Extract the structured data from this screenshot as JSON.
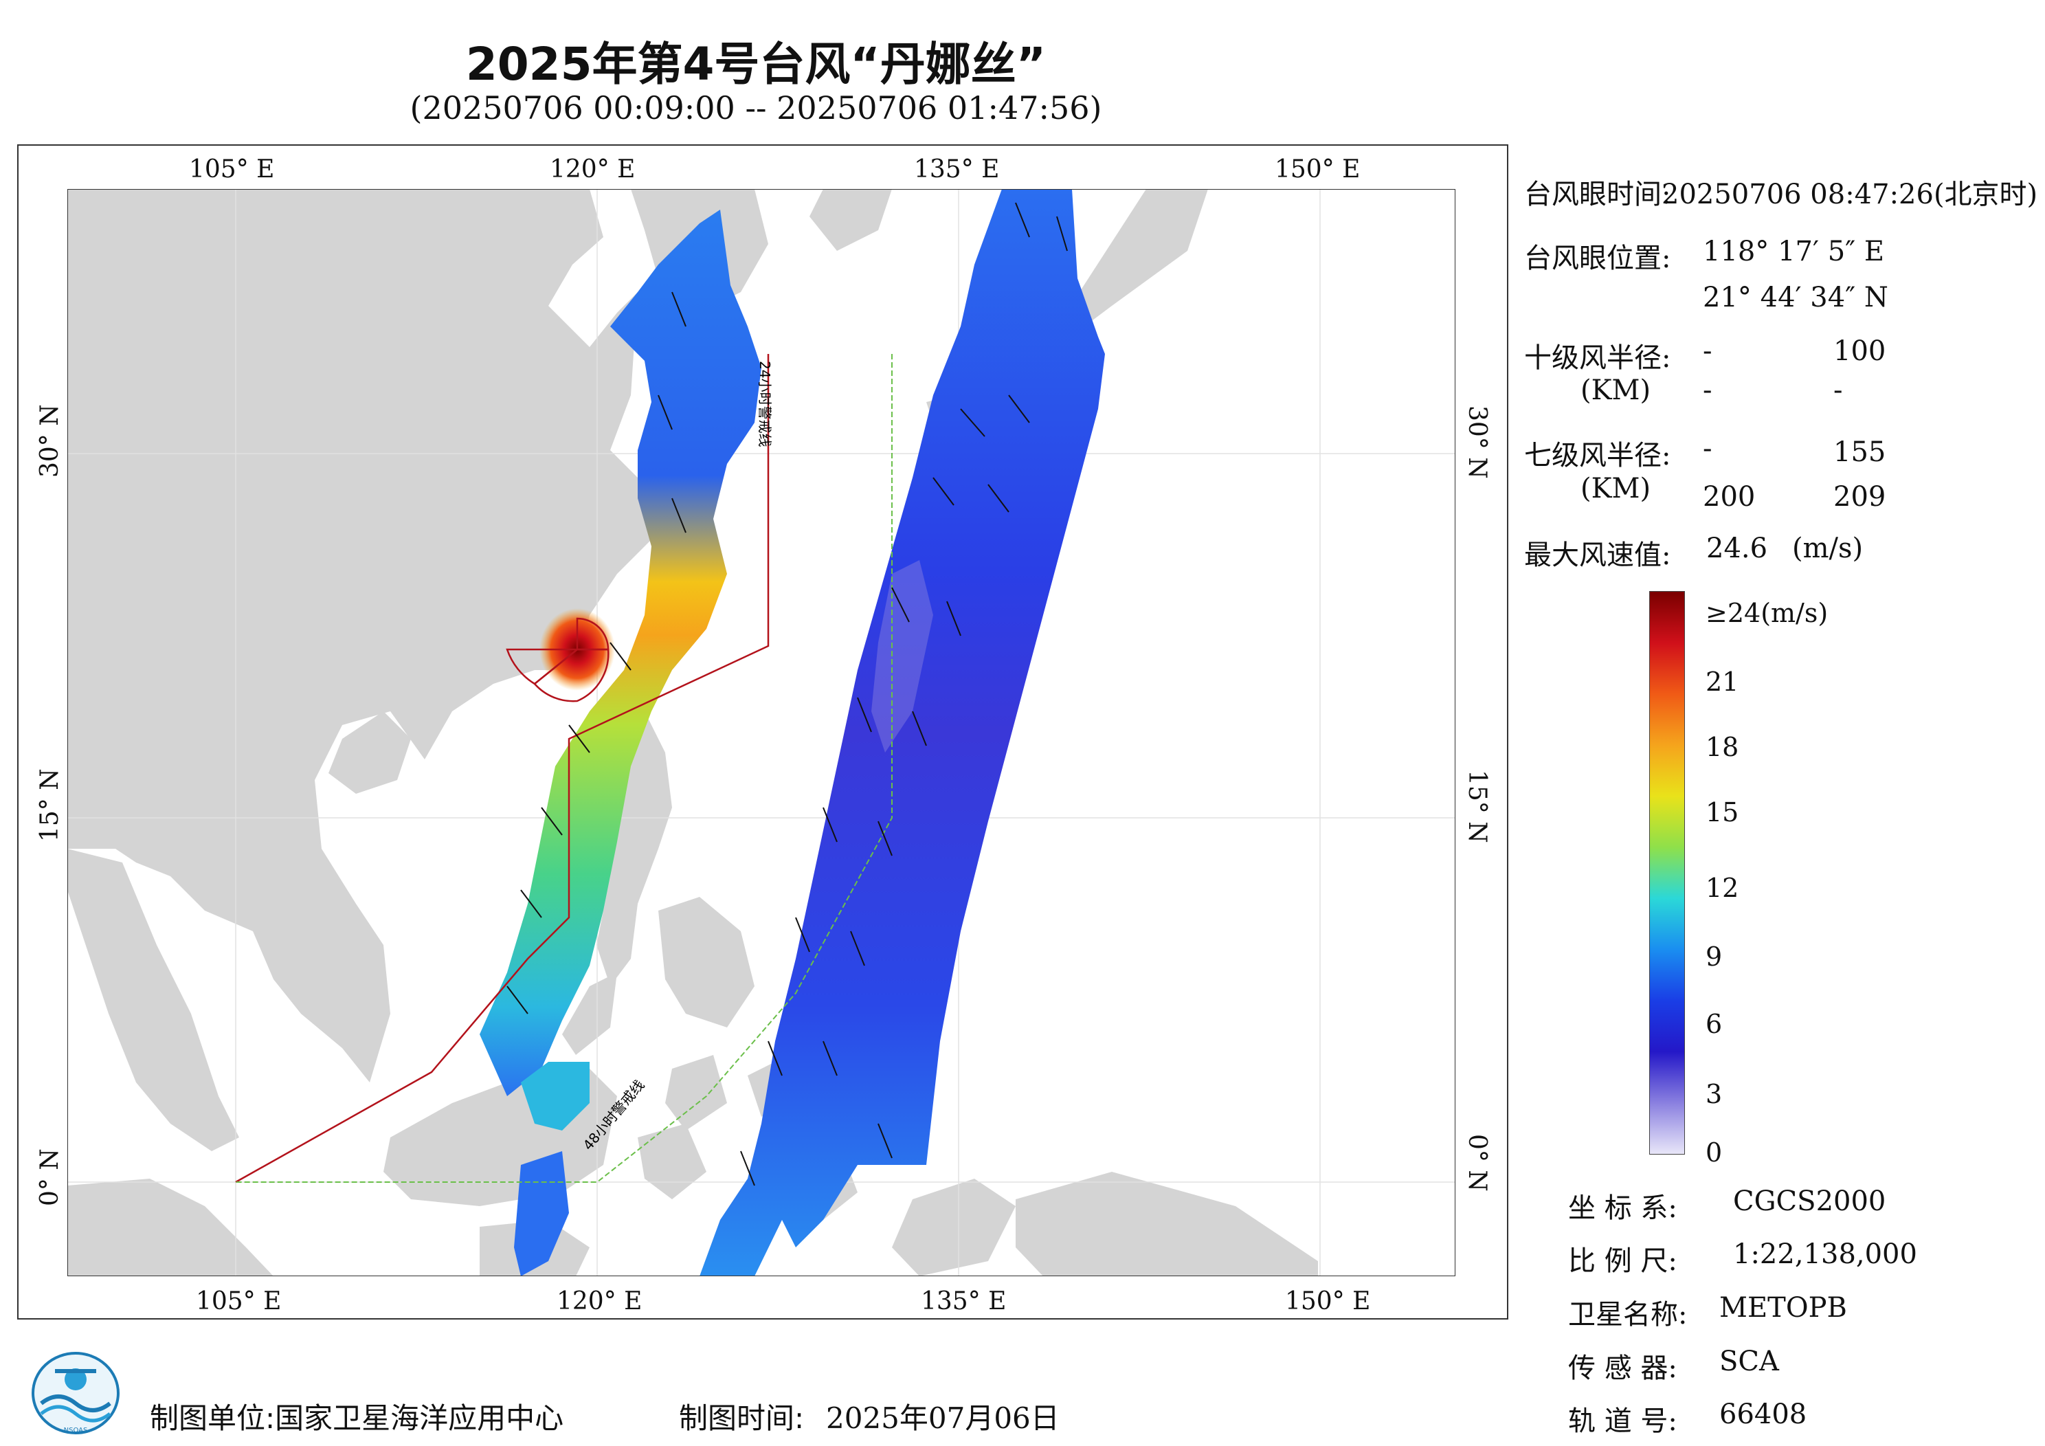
{
  "title": "2025年第4号台风“丹娜丝”",
  "subtitle": "(20250706 00:09:00 -- 20250706 01:47:56)",
  "axes": {
    "lon_labels_top": [
      "105° E",
      "120° E",
      "135° E",
      "150° E"
    ],
    "lon_labels_bottom": [
      "105° E",
      "120° E",
      "135° E",
      "150° E"
    ],
    "lat_labels_left": [
      "30° N",
      "15° N",
      "0° N"
    ],
    "lat_labels_right": [
      "30° N",
      "15° N",
      "0° N"
    ]
  },
  "warning_lines": {
    "line_24h": "24小时警戒线",
    "line_48h": "48小时警戒线",
    "color_24h": "#b3121b",
    "color_48h": "#6bbf4a"
  },
  "info": {
    "eye_time_label": "台风眼时间:",
    "eye_time_value": "20250706 08:47:26(北京时)",
    "eye_pos_label": "台风眼位置:",
    "eye_lon": "118° 17′ 5″ E",
    "eye_lat": "21° 44′ 34″ N",
    "r10_label": "十级风半径:",
    "r10_unit": "(KM)",
    "r10_values": [
      "-",
      "100",
      "-",
      "-"
    ],
    "r7_label": "七级风半径:",
    "r7_unit": "(KM)",
    "r7_values": [
      "-",
      "155",
      "200",
      "209"
    ],
    "max_wind_label": "最大风速值:",
    "max_wind_value": "24.6",
    "max_wind_unit": "(m/s)"
  },
  "colorbar": {
    "labels": [
      "≥24(m/s)",
      "21",
      "18",
      "15",
      "12",
      "9",
      "6",
      "3",
      "0"
    ],
    "stops": [
      "#7a0000",
      "#d0101a",
      "#f05a16",
      "#f5a41c",
      "#e9e21a",
      "#8fe04a",
      "#2bd8d8",
      "#1a8ef0",
      "#1a3ee6",
      "#2418c8",
      "#8a80e0",
      "#e8e6f8"
    ]
  },
  "meta": {
    "crs_label": "坐 标 系:",
    "crs_value": "CGCS2000",
    "scale_label": "比 例 尺:",
    "scale_value": "1:22,138,000",
    "sat_label": "卫星名称:",
    "sat_value": "METOPB",
    "sensor_label": "传 感 器:",
    "sensor_value": "SCA",
    "orbit_label": "轨 道 号:",
    "orbit_value": "66408"
  },
  "footer": {
    "producer": "制图单位:国家卫星海洋应用中心",
    "date_label": "制图时间:",
    "date_value": "2025年07月06日",
    "logo_text": "NSOAS"
  },
  "colors": {
    "land": "#d4d4d4",
    "ocean": "#ffffff",
    "frame": "#333333"
  }
}
